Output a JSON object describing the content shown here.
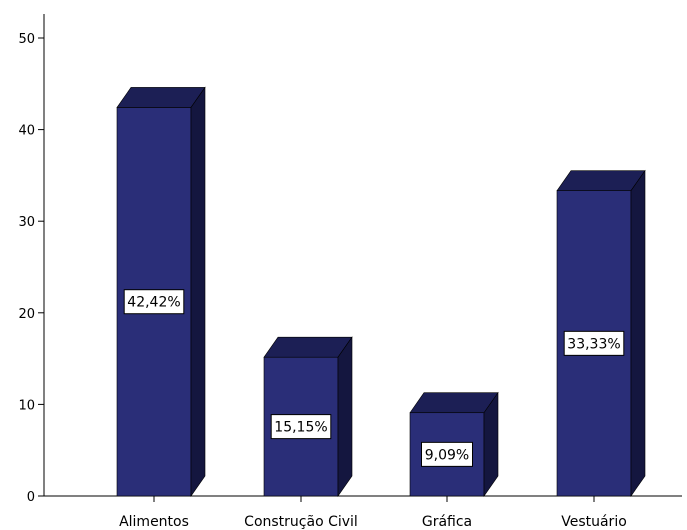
{
  "chart_data": {
    "type": "bar",
    "categories": [
      "Alimentos",
      "Construção Civil",
      "Gráfica",
      "Vestuário"
    ],
    "values": [
      42.42,
      15.15,
      9.09,
      33.33
    ],
    "data_labels": [
      "42,42%",
      "15,15%",
      "9,09%",
      "33,33%"
    ],
    "ylim": [
      0,
      50
    ],
    "yticks": [
      0,
      10,
      20,
      30,
      40,
      50
    ],
    "ytick_labels": [
      "0",
      "10",
      "20",
      "30",
      "40",
      "50"
    ],
    "grid": false,
    "legend": "none",
    "style": "3d-bar"
  },
  "colors": {
    "bar_front": "#2a2e78",
    "bar_top": "#1c1f55",
    "bar_side": "#14163f",
    "outline": "#000000"
  }
}
